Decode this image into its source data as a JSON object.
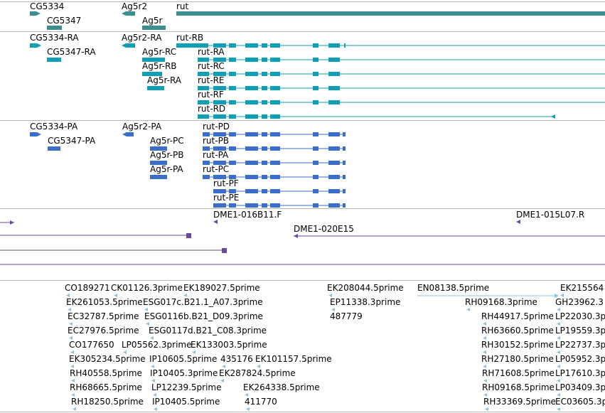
{
  "colors": {
    "gene": "#3d8f8d",
    "mrna": "#0f9fb5",
    "cds": "#3a6ec9",
    "clone": "#6a4a9e",
    "est": "#8ec3df",
    "divider": "#b8b8b8"
  },
  "tracks": {
    "genes": {
      "labels": [
        "CG5334",
        "Ag5r2",
        "rut",
        "CG5347",
        "Ag5r"
      ]
    },
    "transcripts": {
      "labels": [
        "CG5334-RA",
        "Ag5r2-RA",
        "rut-RB",
        "CG5347-RA",
        "Ag5r-RC",
        "rut-RA",
        "Ag5r-RB",
        "rut-RC",
        "Ag5r-RA",
        "rut-RE",
        "rut-RF",
        "rut-RD"
      ]
    },
    "proteins": {
      "labels": [
        "CG5334-PA",
        "Ag5r2-PA",
        "rut-PD",
        "CG5347-PA",
        "Ag5r-PC",
        "rut-PB",
        "Ag5r-PB",
        "rut-PA",
        "Ag5r-PA",
        "rut-PC",
        "rut-PF",
        "rut-PE"
      ]
    },
    "clones": {
      "labels": [
        "DME1-016B11.F",
        "DME1-015L07.R",
        "DME1-020E15"
      ]
    },
    "ests": {
      "labels": [
        "CO189271",
        "CK01126.3prime",
        "EK189027.5prime",
        "EK208044.5prime",
        "EN08138.5prime",
        "EK215564",
        "EK261053.5prime",
        "ESG017c.B21.1_A07.3prime",
        "EP11338.3prime",
        "RH09168.3prime",
        "GH23962.3",
        "EC32787.5prime",
        "ESG0116b.B21_D09.3prime",
        "487779",
        "RH44917.5prime",
        "LP22030.3p",
        "EC27976.5prime",
        "ESG0117d.B21_C08.3prime",
        "RH63660.5prime",
        "LP19559.3p",
        "CO177650",
        "LP05562.3prime",
        "EK133003.5prime",
        "RH30152.5prime",
        "LP22737.3p",
        "EK305234.5prime",
        "IP10605.5prime",
        "435176",
        "EK101157.5prime",
        "RH27180.5prime",
        "LP05952.3p",
        "RH40558.5prime",
        "IP10405.3prime",
        "EK287824.5prime",
        "RH71608.5prime",
        "LP17610.3p",
        "RH68665.5prime",
        "LP12239.5prime",
        "EK264338.5prime",
        "RH09168.5prime",
        "LP03409.3p",
        "RH18250.5prime",
        "IP10405.5prime",
        "411770",
        "RH33369.5prime",
        "EC03605.3p"
      ]
    }
  }
}
